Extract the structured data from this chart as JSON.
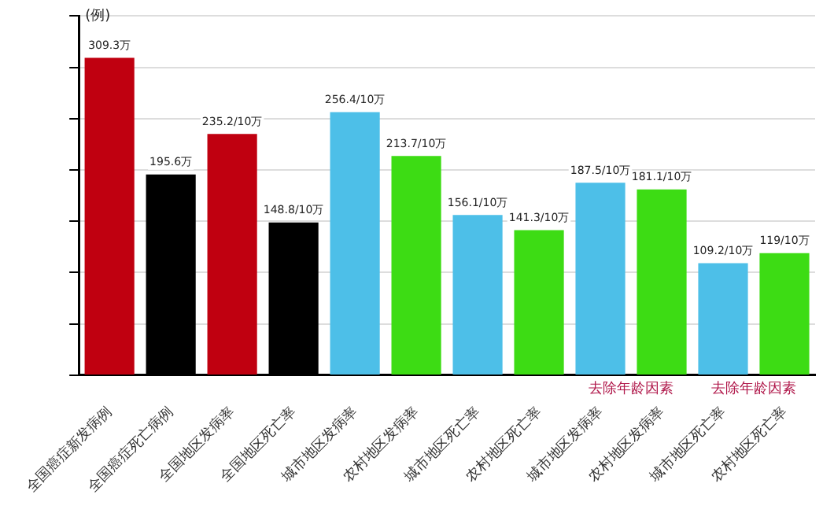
{
  "chart_data": {
    "type": "bar",
    "ylabel": "(例)",
    "categories": [
      "全国癌症新发病例",
      "全国癌症死亡病例",
      "全国地区发病率",
      "全国地区死亡率",
      "城市地区发病率",
      "农村地区发病率",
      "城市地区死亡率",
      "农村地区死亡率",
      "城市地区发病率",
      "农村地区发病率",
      "城市地区死亡率",
      "农村地区死亡率"
    ],
    "values": [
      309.3,
      195.6,
      235.2,
      148.8,
      256.4,
      213.7,
      156.1,
      141.3,
      187.5,
      181.1,
      109.2,
      119
    ],
    "value_labels": [
      "309.3万",
      "195.6万",
      "235.2/10万",
      "148.8/10万",
      "256.4/10万",
      "213.7/10万",
      "156.1/10万",
      "141.3/10万",
      "187.5/10万",
      "181.1/10万",
      "109.2/10万",
      "119/10万"
    ],
    "colors": [
      "#c00010",
      "#000000",
      "#c00010",
      "#000000",
      "#4dbfe8",
      "#3ddc14",
      "#4dbfe8",
      "#3ddc14",
      "#4dbfe8",
      "#3ddc14",
      "#4dbfe8",
      "#3ddc14"
    ],
    "ylim": [
      0,
      350
    ],
    "yticks": [
      {
        "value": 0,
        "label": null
      },
      {
        "value": 50,
        "label": null
      },
      {
        "value": 100,
        "label": null
      },
      {
        "value": 150,
        "label": null
      },
      {
        "value": 200,
        "label": null
      },
      {
        "value": 250,
        "label": null
      },
      {
        "value": 300,
        "label": null
      },
      {
        "value": 350,
        "label": null
      }
    ],
    "grid": "y",
    "legend": false,
    "annotations": [
      "去除年龄因素",
      "去除年龄因素"
    ]
  }
}
